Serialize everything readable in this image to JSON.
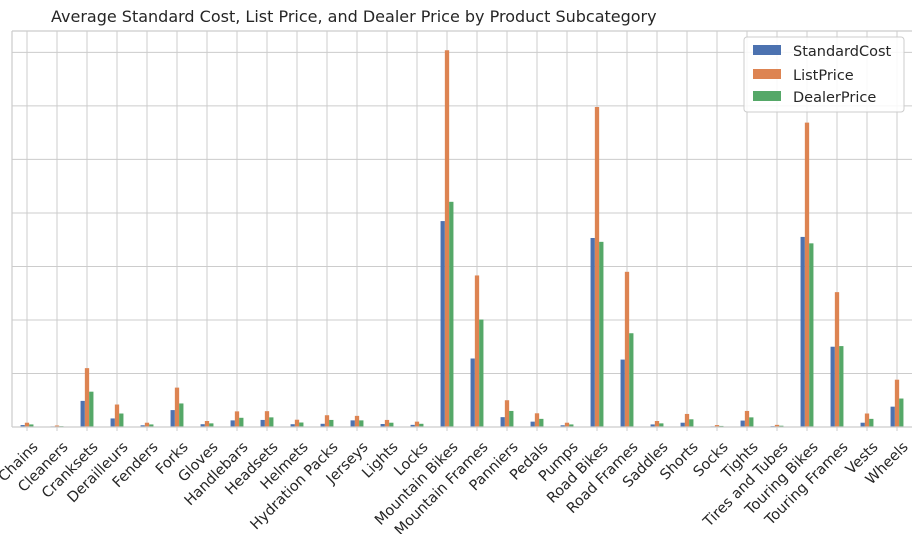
{
  "chart_data": {
    "type": "bar",
    "title": "Average Standard Cost, List Price, and Dealer Price by Product Subcategory",
    "xlabel": "",
    "ylabel": "",
    "ylim": [
      0,
      1850
    ],
    "grid": true,
    "legend_position": "top-right",
    "categories": [
      "Chains",
      "Cleaners",
      "Cranksets",
      "Derailleurs",
      "Fenders",
      "Forks",
      "Gloves",
      "Handlebars",
      "Headsets",
      "Helmets",
      "Hydration Packs",
      "Jerseys",
      "Lights",
      "Locks",
      "Mountain Bikes",
      "Mountain Frames",
      "Panniers",
      "Pedals",
      "Pumps",
      "Road Bikes",
      "Road Frames",
      "Saddles",
      "Shorts",
      "Socks",
      "Tights",
      "Tires and Tubes",
      "Touring Bikes",
      "Touring Frames",
      "Vests",
      "Wheels"
    ],
    "series": [
      {
        "name": "StandardCost",
        "color": "#4c72b0",
        "values": [
          9,
          3,
          122,
          40,
          8,
          79,
          13,
          31,
          33,
          13,
          15,
          31,
          14,
          10,
          962,
          320,
          46,
          25,
          8,
          883,
          315,
          12,
          20,
          3,
          30,
          4,
          888,
          375,
          20,
          95
        ]
      },
      {
        "name": "ListPrice",
        "color": "#dd8452",
        "values": [
          20,
          7,
          275,
          105,
          20,
          184,
          28,
          73,
          74,
          34,
          55,
          52,
          33,
          25,
          1760,
          708,
          125,
          64,
          20,
          1495,
          725,
          28,
          61,
          9,
          75,
          10,
          1422,
          630,
          63,
          221
        ]
      },
      {
        "name": "DealerPrice",
        "color": "#55a868",
        "values": [
          12,
          4,
          165,
          63,
          12,
          110,
          17,
          43,
          45,
          21,
          33,
          31,
          20,
          15,
          1052,
          502,
          75,
          38,
          12,
          865,
          438,
          17,
          36,
          5,
          45,
          6,
          858,
          378,
          38,
          133
        ]
      }
    ]
  }
}
